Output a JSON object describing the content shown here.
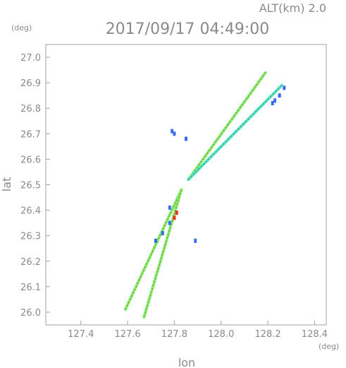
{
  "header": {
    "alt_label": "ALT(km) 2.0",
    "timestamp": "2017/09/17 04:49:00"
  },
  "chart_data": {
    "type": "scatter",
    "title": "2017/09/17 04:49:00",
    "xlabel": "lon",
    "ylabel": "lat",
    "x_unit": "(deg)",
    "y_unit": "(deg)",
    "xlim": [
      127.25,
      128.45
    ],
    "ylim": [
      25.95,
      27.05
    ],
    "x_ticks": [
      "127.4",
      "127.6",
      "127.8",
      "128.0",
      "128.2",
      "128.4"
    ],
    "y_ticks": [
      "26.0",
      "26.1",
      "26.2",
      "26.3",
      "26.4",
      "26.5",
      "26.6",
      "26.7",
      "26.8",
      "26.9",
      "27.0"
    ],
    "grid": false,
    "colors": {
      "axis": "#9a9a9a",
      "green": "#7cf06a",
      "cyan": "#3fe8c8",
      "blue": "#3a6cf0",
      "red": "#e8321e"
    },
    "series": [
      {
        "lines": [
          {
            "from": [
              127.86,
              26.52
            ],
            "to": [
              128.19,
              26.94
            ],
            "color": "green",
            "width": 0.012
          },
          {
            "from": [
              127.86,
              26.52
            ],
            "to": [
              128.26,
              26.89
            ],
            "color": "cyan",
            "width": 0.012
          },
          {
            "from": [
              127.83,
              26.48
            ],
            "to": [
              127.59,
              26.01
            ],
            "color": "green",
            "width": 0.012
          },
          {
            "from": [
              127.83,
              26.48
            ],
            "to": [
              127.67,
              25.98
            ],
            "color": "green",
            "width": 0.012
          }
        ],
        "points": [
          {
            "x": 128.22,
            "y": 26.82,
            "color": "blue"
          },
          {
            "x": 128.25,
            "y": 26.85,
            "color": "blue"
          },
          {
            "x": 128.27,
            "y": 26.88,
            "color": "blue"
          },
          {
            "x": 128.23,
            "y": 26.83,
            "color": "blue"
          },
          {
            "x": 127.75,
            "y": 26.31,
            "color": "blue"
          },
          {
            "x": 127.72,
            "y": 26.28,
            "color": "blue"
          },
          {
            "x": 127.78,
            "y": 26.35,
            "color": "blue"
          },
          {
            "x": 127.78,
            "y": 26.41,
            "color": "blue"
          },
          {
            "x": 127.81,
            "y": 26.39,
            "color": "red"
          },
          {
            "x": 127.8,
            "y": 26.37,
            "color": "red"
          },
          {
            "x": 127.79,
            "y": 26.71,
            "color": "blue"
          },
          {
            "x": 127.8,
            "y": 26.7,
            "color": "blue"
          },
          {
            "x": 127.85,
            "y": 26.68,
            "color": "blue"
          },
          {
            "x": 127.89,
            "y": 26.28,
            "color": "blue"
          }
        ]
      }
    ]
  }
}
